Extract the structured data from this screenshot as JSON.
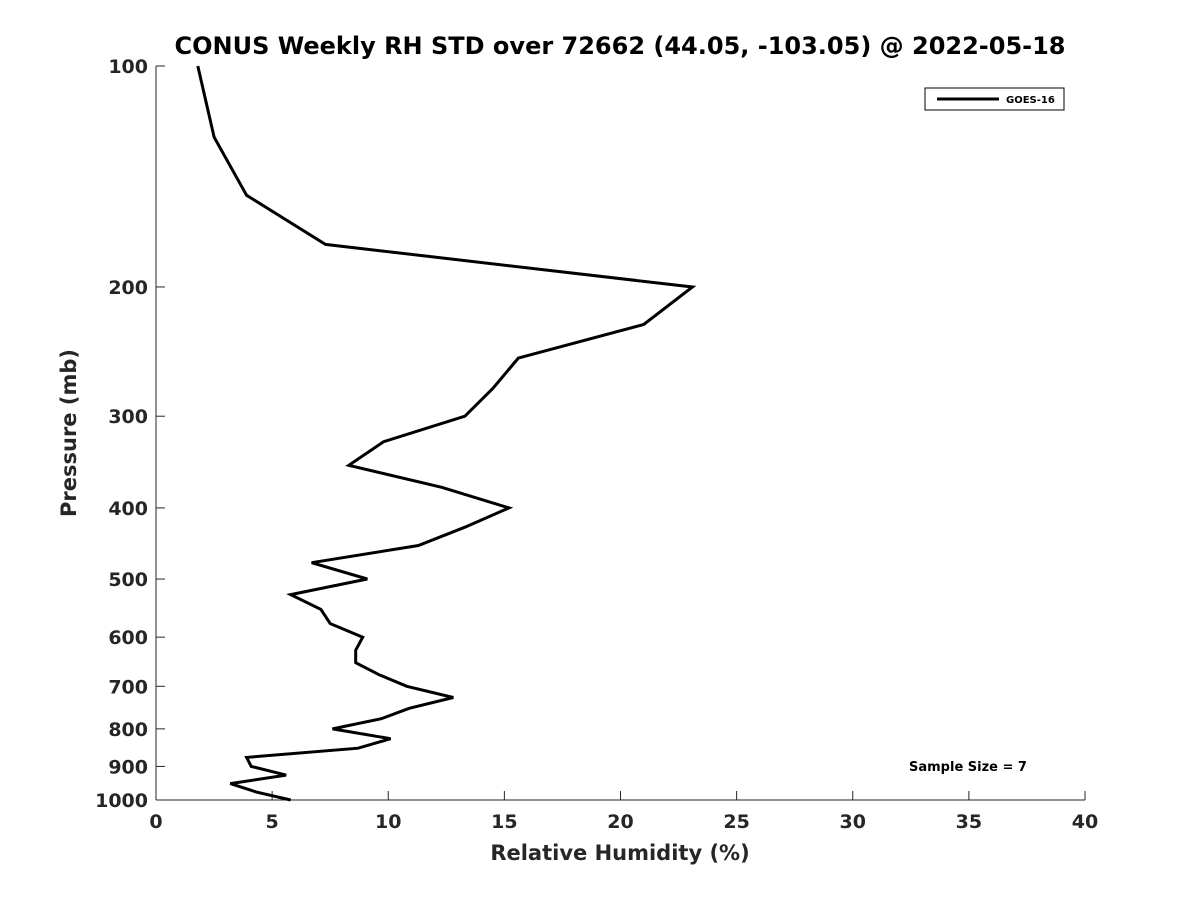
{
  "chart_data": {
    "type": "line",
    "title": "CONUS Weekly RH STD over 72662 (44.05, -103.05) @ 2022-05-18",
    "xlabel": "Relative Humidity (%)",
    "ylabel": "Pressure (mb)",
    "xlim": [
      0,
      40
    ],
    "ylim": [
      100,
      1000
    ],
    "y_scale": "log",
    "y_reversed": true,
    "x_ticks": [
      0,
      5,
      10,
      15,
      20,
      25,
      30,
      35,
      40
    ],
    "y_ticks": [
      100,
      200,
      300,
      400,
      500,
      600,
      700,
      800,
      900,
      1000
    ],
    "grid": false,
    "legend_position": "top-right",
    "annotation": "Sample Size = 7",
    "series": [
      {
        "name": "GOES-16",
        "color": "#000000",
        "points": [
          {
            "x": 1.8,
            "y": 100
          },
          {
            "x": 2.5,
            "y": 125
          },
          {
            "x": 3.9,
            "y": 150
          },
          {
            "x": 7.3,
            "y": 175
          },
          {
            "x": 23.1,
            "y": 200
          },
          {
            "x": 21.0,
            "y": 225
          },
          {
            "x": 15.6,
            "y": 250
          },
          {
            "x": 14.5,
            "y": 275
          },
          {
            "x": 13.3,
            "y": 300
          },
          {
            "x": 9.8,
            "y": 325
          },
          {
            "x": 8.3,
            "y": 350
          },
          {
            "x": 12.3,
            "y": 375
          },
          {
            "x": 15.2,
            "y": 400
          },
          {
            "x": 13.3,
            "y": 425
          },
          {
            "x": 11.3,
            "y": 450
          },
          {
            "x": 6.7,
            "y": 475
          },
          {
            "x": 9.1,
            "y": 500
          },
          {
            "x": 5.8,
            "y": 525
          },
          {
            "x": 7.1,
            "y": 550
          },
          {
            "x": 7.5,
            "y": 575
          },
          {
            "x": 8.9,
            "y": 600
          },
          {
            "x": 8.6,
            "y": 625
          },
          {
            "x": 8.6,
            "y": 650
          },
          {
            "x": 9.6,
            "y": 675
          },
          {
            "x": 10.8,
            "y": 700
          },
          {
            "x": 12.8,
            "y": 725
          },
          {
            "x": 10.9,
            "y": 750
          },
          {
            "x": 9.7,
            "y": 775
          },
          {
            "x": 7.6,
            "y": 800
          },
          {
            "x": 10.1,
            "y": 825
          },
          {
            "x": 8.7,
            "y": 850
          },
          {
            "x": 3.9,
            "y": 875
          },
          {
            "x": 4.1,
            "y": 900
          },
          {
            "x": 5.6,
            "y": 925
          },
          {
            "x": 3.2,
            "y": 950
          },
          {
            "x": 4.3,
            "y": 975
          },
          {
            "x": 5.8,
            "y": 1000
          }
        ]
      }
    ]
  }
}
